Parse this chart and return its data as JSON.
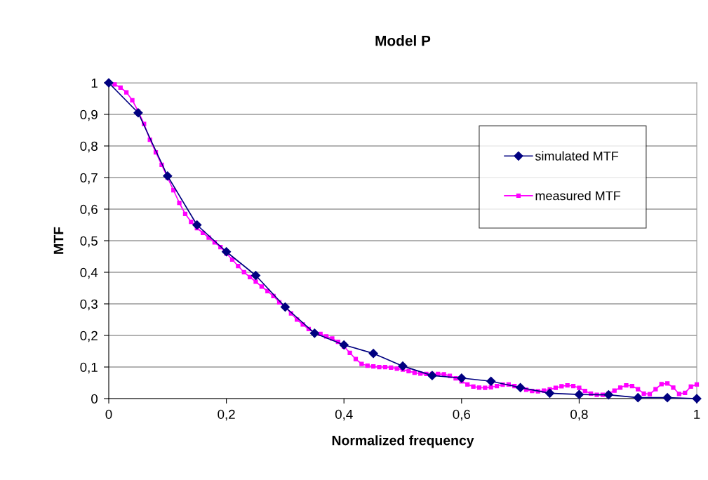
{
  "chart_data": {
    "type": "line",
    "title": "Model P",
    "xlabel": "Normalized frequency",
    "ylabel": "MTF",
    "xlim": [
      0,
      1
    ],
    "ylim": [
      0,
      1
    ],
    "xticks": [
      0,
      {
        "value": 0.2,
        "label": "0,2"
      },
      {
        "value": 0.4,
        "label": "0,4"
      },
      {
        "value": 0.6,
        "label": "0,6"
      },
      {
        "value": 0.8,
        "label": "0,8"
      },
      1
    ],
    "yticks": [
      0,
      {
        "value": 0.1,
        "label": "0,1"
      },
      {
        "value": 0.2,
        "label": "0,2"
      },
      {
        "value": 0.3,
        "label": "0,3"
      },
      {
        "value": 0.4,
        "label": "0,4"
      },
      {
        "value": 0.5,
        "label": "0,5"
      },
      {
        "value": 0.6,
        "label": "0,6"
      },
      {
        "value": 0.7,
        "label": "0,7"
      },
      {
        "value": 0.8,
        "label": "0,8"
      },
      {
        "value": 0.9,
        "label": "0,9"
      },
      1
    ],
    "grid": "y",
    "legend": "top right",
    "series": [
      {
        "name": "simulated MTF",
        "color": "#000080",
        "marker": "diamond",
        "x": [
          0,
          0.05,
          0.1,
          0.15,
          0.2,
          0.25,
          0.3,
          0.35,
          0.4,
          0.45,
          0.5,
          0.55,
          0.6,
          0.65,
          0.7,
          0.75,
          0.8,
          0.85,
          0.9,
          0.95,
          1
        ],
        "values": [
          1,
          0.905,
          0.705,
          0.55,
          0.465,
          0.39,
          0.29,
          0.207,
          0.17,
          0.143,
          0.103,
          0.073,
          0.065,
          0.055,
          0.035,
          0.017,
          0.013,
          0.012,
          0.003,
          0.003,
          0.0
        ]
      },
      {
        "name": "measured MTF",
        "color": "#ff00ff",
        "marker": "square",
        "x": [
          0,
          0.01,
          0.02,
          0.03,
          0.04,
          0.05,
          0.06,
          0.07,
          0.08,
          0.09,
          0.1,
          0.11,
          0.12,
          0.13,
          0.14,
          0.15,
          0.16,
          0.17,
          0.18,
          0.19,
          0.2,
          0.21,
          0.22,
          0.23,
          0.24,
          0.25,
          0.26,
          0.27,
          0.28,
          0.29,
          0.3,
          0.31,
          0.32,
          0.33,
          0.34,
          0.35,
          0.36,
          0.37,
          0.38,
          0.39,
          0.4,
          0.41,
          0.42,
          0.43,
          0.44,
          0.45,
          0.46,
          0.47,
          0.48,
          0.49,
          0.5,
          0.51,
          0.52,
          0.53,
          0.54,
          0.55,
          0.56,
          0.57,
          0.58,
          0.59,
          0.6,
          0.61,
          0.62,
          0.63,
          0.64,
          0.65,
          0.66,
          0.67,
          0.68,
          0.69,
          0.7,
          0.71,
          0.72,
          0.73,
          0.74,
          0.75,
          0.76,
          0.77,
          0.78,
          0.79,
          0.8,
          0.81,
          0.82,
          0.83,
          0.84,
          0.85,
          0.86,
          0.87,
          0.88,
          0.89,
          0.9,
          0.91,
          0.92,
          0.93,
          0.94,
          0.95,
          0.96,
          0.97,
          0.98,
          0.99,
          1
        ],
        "values": [
          1,
          0.995,
          0.985,
          0.97,
          0.945,
          0.91,
          0.87,
          0.82,
          0.78,
          0.74,
          0.7,
          0.66,
          0.62,
          0.585,
          0.56,
          0.54,
          0.525,
          0.51,
          0.495,
          0.48,
          0.46,
          0.44,
          0.42,
          0.4,
          0.385,
          0.37,
          0.355,
          0.34,
          0.325,
          0.305,
          0.29,
          0.27,
          0.25,
          0.235,
          0.22,
          0.21,
          0.205,
          0.197,
          0.19,
          0.18,
          0.165,
          0.145,
          0.125,
          0.11,
          0.104,
          0.102,
          0.1,
          0.1,
          0.098,
          0.095,
          0.092,
          0.087,
          0.082,
          0.079,
          0.078,
          0.078,
          0.078,
          0.077,
          0.072,
          0.064,
          0.055,
          0.045,
          0.038,
          0.035,
          0.034,
          0.036,
          0.04,
          0.044,
          0.045,
          0.04,
          0.034,
          0.028,
          0.024,
          0.023,
          0.025,
          0.029,
          0.034,
          0.039,
          0.042,
          0.04,
          0.034,
          0.024,
          0.016,
          0.012,
          0.012,
          0.016,
          0.025,
          0.035,
          0.042,
          0.04,
          0.03,
          0.016,
          0.014,
          0.03,
          0.046,
          0.048,
          0.035,
          0.015,
          0.018,
          0.038,
          0.045
        ]
      }
    ]
  }
}
